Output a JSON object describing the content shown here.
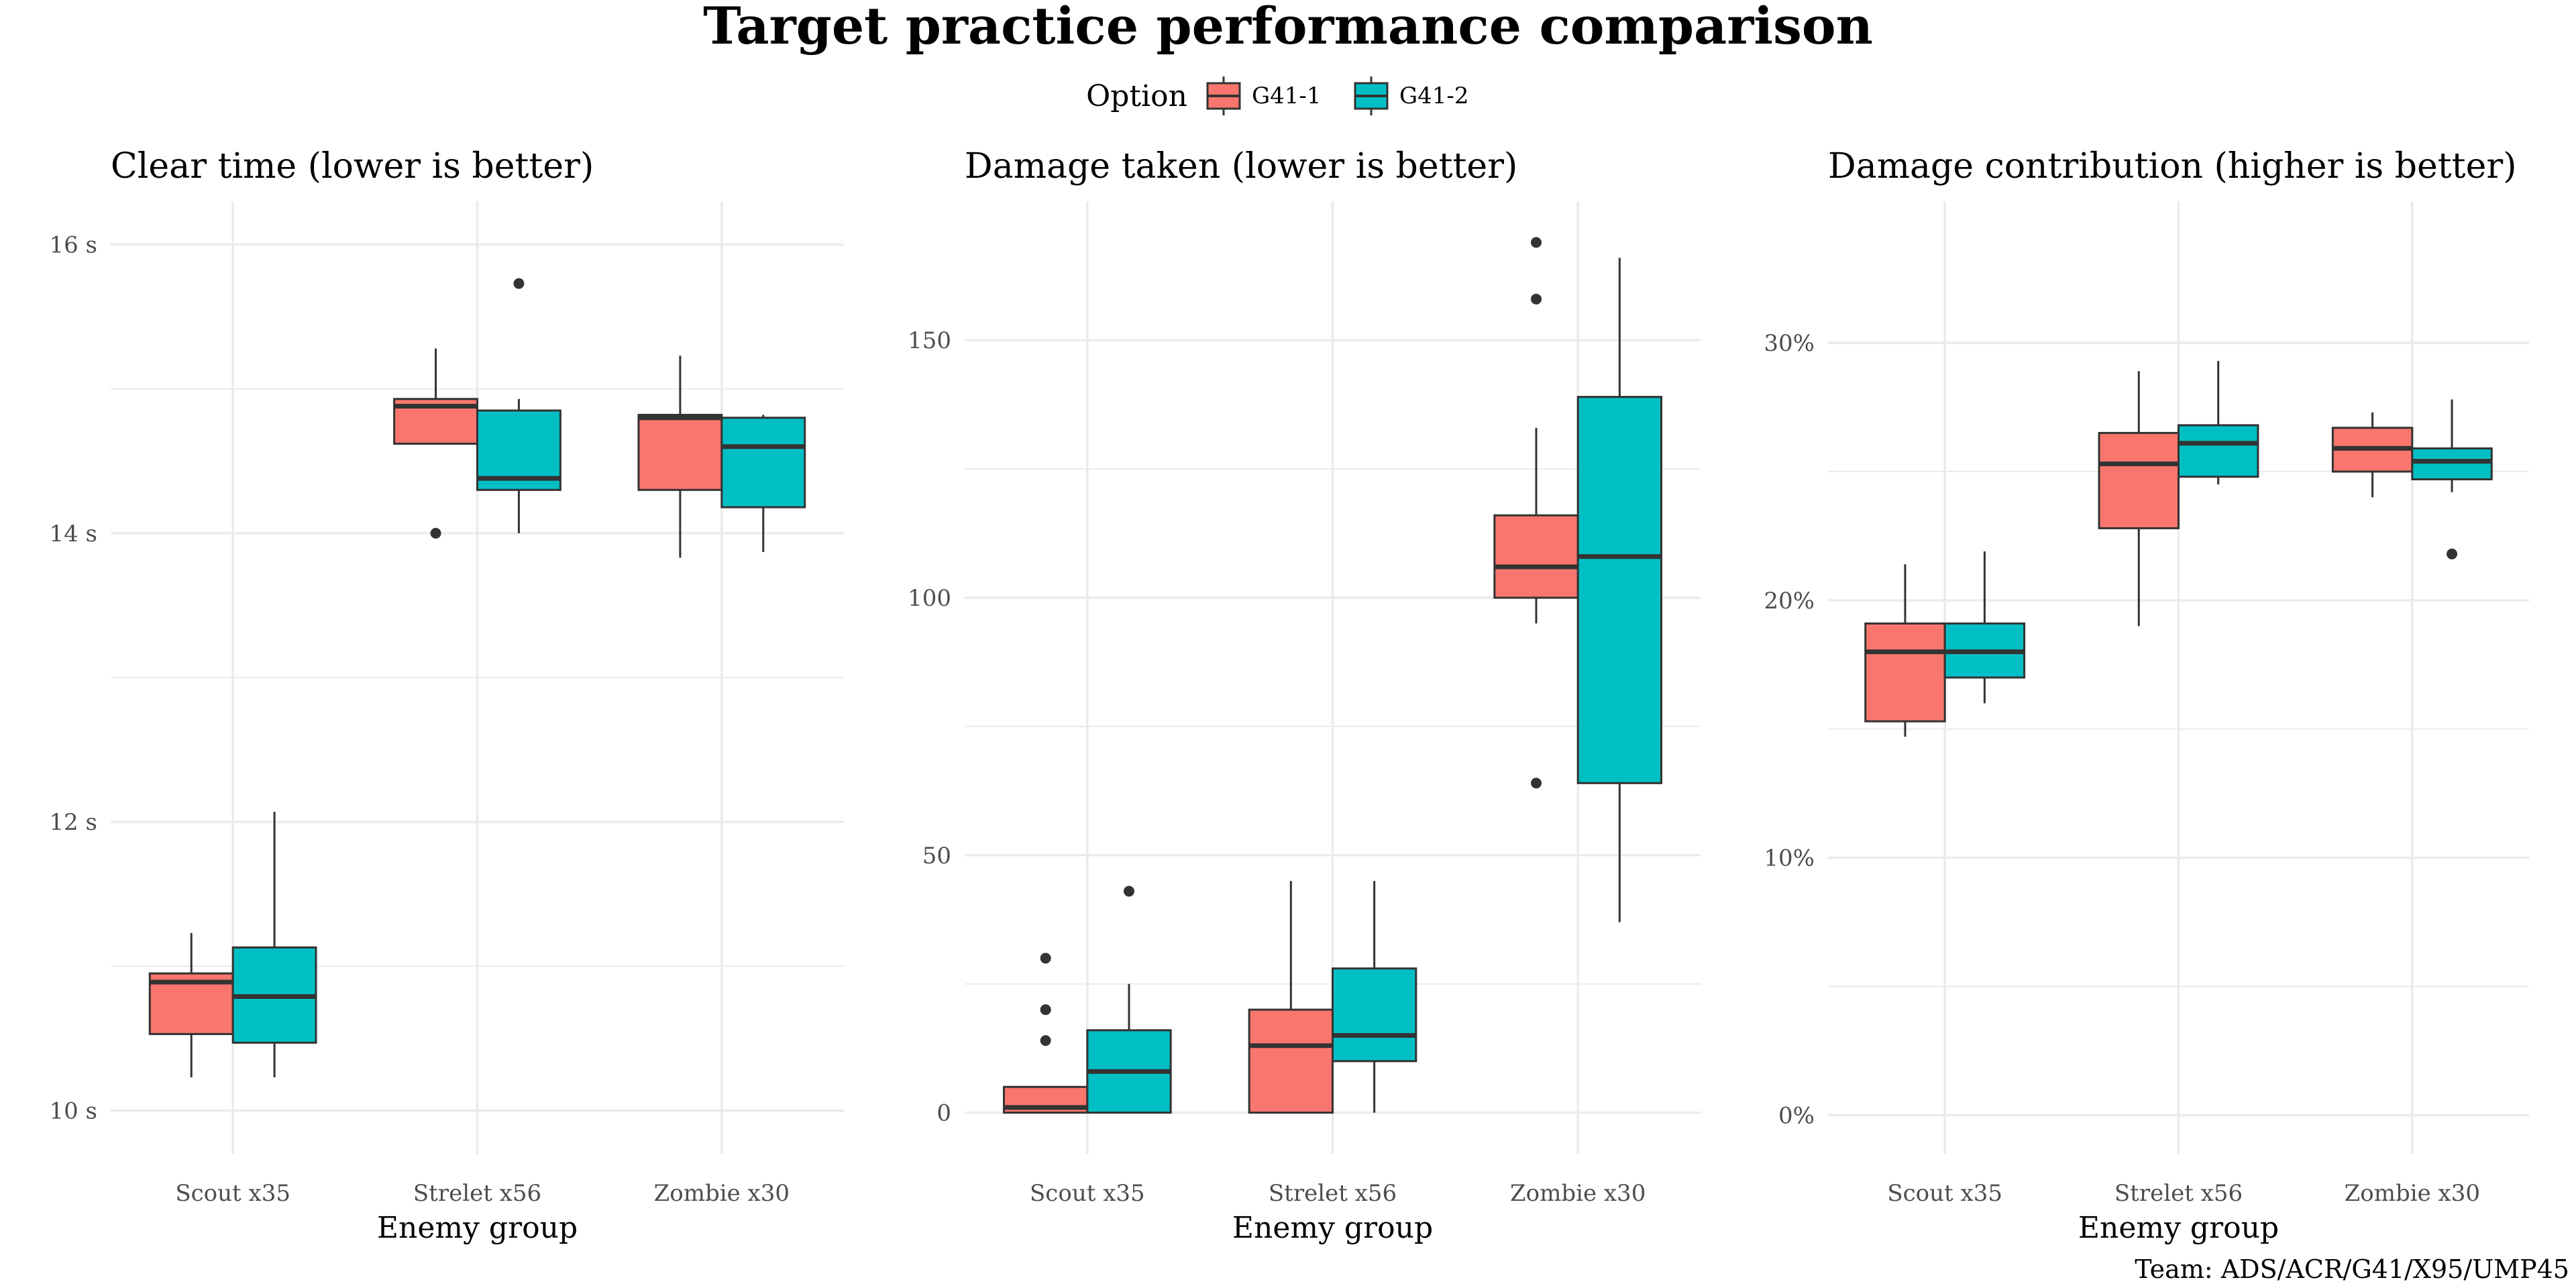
{
  "figure": {
    "title": "Target practice performance comparison",
    "legend_title": "Option",
    "legend_items": [
      "G41-1",
      "G41-2"
    ],
    "caption": "Team: ADS/ACR/G41/X95/UMP45",
    "colors": {
      "G41-1": "#F8766D",
      "G41-2": "#00BFC4",
      "grid": "#ebebeb",
      "stroke": "#333333"
    }
  },
  "chart_data": [
    {
      "type": "box",
      "title": "Clear time (lower is better)",
      "xlabel": "Enemy group",
      "ylabel": "",
      "categories": [
        "Scout x35",
        "Strelet x56",
        "Zombie x30"
      ],
      "ylim": [
        9.7,
        16.3
      ],
      "yticks": [
        10,
        12,
        14,
        16
      ],
      "ytick_labels": [
        "10 s",
        "12 s",
        "14 s",
        "16 s"
      ],
      "series": [
        {
          "name": "G41-1",
          "boxes": [
            {
              "whisker_low": 10.23,
              "q1": 10.53,
              "median": 10.89,
              "q3": 10.95,
              "whisker_high": 11.23,
              "outliers": []
            },
            {
              "whisker_low": 14.62,
              "q1": 14.62,
              "median": 14.88,
              "q3": 14.93,
              "whisker_high": 15.28,
              "outliers": [
                14.0
              ]
            },
            {
              "whisker_low": 13.83,
              "q1": 14.3,
              "median": 14.8,
              "q3": 14.82,
              "whisker_high": 15.23,
              "outliers": []
            }
          ]
        },
        {
          "name": "G41-2",
          "boxes": [
            {
              "whisker_low": 10.23,
              "q1": 10.47,
              "median": 10.79,
              "q3": 11.13,
              "whisker_high": 12.07,
              "outliers": []
            },
            {
              "whisker_low": 14.0,
              "q1": 14.3,
              "median": 14.38,
              "q3": 14.85,
              "whisker_high": 14.93,
              "outliers": [
                15.73
              ]
            },
            {
              "whisker_low": 13.87,
              "q1": 14.18,
              "median": 14.6,
              "q3": 14.8,
              "whisker_high": 14.82,
              "outliers": []
            }
          ]
        }
      ]
    },
    {
      "type": "box",
      "title": "Damage taken (lower is better)",
      "xlabel": "Enemy group",
      "ylabel": "",
      "categories": [
        "Scout x35",
        "Strelet x56",
        "Zombie x30"
      ],
      "ylim": [
        -8,
        177
      ],
      "yticks": [
        0,
        50,
        100,
        150
      ],
      "ytick_labels": [
        "0",
        "50",
        "100",
        "150"
      ],
      "series": [
        {
          "name": "G41-1",
          "boxes": [
            {
              "whisker_low": 0,
              "q1": 0,
              "median": 1,
              "q3": 5,
              "whisker_high": 5,
              "outliers": [
                14,
                20,
                30
              ]
            },
            {
              "whisker_low": 0,
              "q1": 0,
              "median": 13,
              "q3": 20,
              "whisker_high": 45,
              "outliers": []
            },
            {
              "whisker_low": 95,
              "q1": 100,
              "median": 106,
              "q3": 116,
              "whisker_high": 133,
              "outliers": [
                64,
                158,
                169
              ]
            }
          ]
        },
        {
          "name": "G41-2",
          "boxes": [
            {
              "whisker_low": 0,
              "q1": 0,
              "median": 8,
              "q3": 16,
              "whisker_high": 25,
              "outliers": [
                43
              ]
            },
            {
              "whisker_low": 0,
              "q1": 10,
              "median": 15,
              "q3": 28,
              "whisker_high": 45,
              "outliers": []
            },
            {
              "whisker_low": 37,
              "q1": 64,
              "median": 108,
              "q3": 139,
              "whisker_high": 166,
              "outliers": []
            }
          ]
        }
      ]
    },
    {
      "type": "box",
      "title": "Damage contribution (higher is better)",
      "xlabel": "Enemy group",
      "ylabel": "",
      "categories": [
        "Scout x35",
        "Strelet x56",
        "Zombie x30"
      ],
      "ylim": [
        -1.5,
        35.5
      ],
      "yticks": [
        0,
        10,
        20,
        30
      ],
      "ytick_labels": [
        "0%",
        "10%",
        "20%",
        "30%"
      ],
      "series": [
        {
          "name": "G41-1",
          "boxes": [
            {
              "whisker_low": 14.7,
              "q1": 15.3,
              "median": 18.0,
              "q3": 19.1,
              "whisker_high": 21.4,
              "outliers": []
            },
            {
              "whisker_low": 19.0,
              "q1": 22.8,
              "median": 25.3,
              "q3": 26.5,
              "whisker_high": 28.9,
              "outliers": []
            },
            {
              "whisker_low": 24.0,
              "q1": 25.0,
              "median": 25.9,
              "q3": 26.7,
              "whisker_high": 27.3,
              "outliers": []
            }
          ]
        },
        {
          "name": "G41-2",
          "boxes": [
            {
              "whisker_low": 16.0,
              "q1": 17.0,
              "median": 18.0,
              "q3": 19.1,
              "whisker_high": 21.9,
              "outliers": []
            },
            {
              "whisker_low": 24.5,
              "q1": 24.8,
              "median": 26.1,
              "q3": 26.8,
              "whisker_high": 29.3,
              "outliers": []
            },
            {
              "whisker_low": 24.2,
              "q1": 24.7,
              "median": 25.4,
              "q3": 25.9,
              "whisker_high": 27.8,
              "outliers": [
                21.8
              ]
            }
          ]
        }
      ]
    }
  ]
}
